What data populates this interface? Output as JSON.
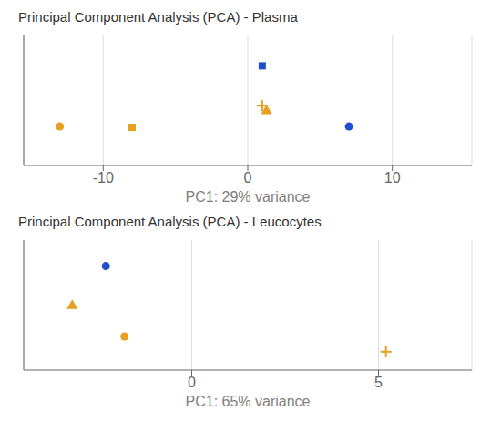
{
  "chart_data": [
    {
      "type": "scatter",
      "title": "Principal Component Analysis (PCA) - Plasma",
      "x_label": "PC1: 29% variance",
      "xlim": [
        -15.5,
        15.5
      ],
      "xticks": [
        -10,
        0,
        10
      ],
      "ylim": [
        -4,
        11
      ],
      "grid": true,
      "tick_labels": "x",
      "series": [
        {
          "color": "#1F4FCC",
          "marker": "square",
          "x": [
            1.0
          ],
          "values": [
            7.5
          ]
        },
        {
          "color": "#E8A020",
          "marker": "circle",
          "x": [
            -13.0
          ],
          "values": [
            0.5
          ]
        },
        {
          "color": "#E8A020",
          "marker": "square",
          "x": [
            -8.0
          ],
          "values": [
            0.4
          ]
        },
        {
          "color": "#E8A020",
          "marker": "triangle",
          "x": [
            1.3
          ],
          "values": [
            2.3
          ]
        },
        {
          "color": "#E8A020",
          "marker": "plus",
          "x": [
            1.0
          ],
          "values": [
            2.9
          ]
        },
        {
          "color": "#1F4FCC",
          "marker": "circle",
          "x": [
            7.0
          ],
          "values": [
            0.5
          ]
        }
      ]
    },
    {
      "type": "scatter",
      "title": "Principal Component Analysis (PCA) - Leucocytes",
      "x_label": "PC1: 65% variance",
      "xlim": [
        -4.5,
        7.5
      ],
      "xticks": [
        0,
        5
      ],
      "ylim": [
        -3,
        5.5
      ],
      "grid": true,
      "tick_labels": "x",
      "series": [
        {
          "color": "#1F4FCC",
          "marker": "circle",
          "x": [
            -2.3
          ],
          "values": [
            3.8
          ]
        },
        {
          "color": "#E8A020",
          "marker": "triangle",
          "x": [
            -3.2
          ],
          "values": [
            1.2
          ]
        },
        {
          "color": "#E8A020",
          "marker": "circle",
          "x": [
            -1.8
          ],
          "values": [
            -0.8
          ]
        },
        {
          "color": "#E8A020",
          "marker": "plus",
          "x": [
            5.2
          ],
          "values": [
            -1.8
          ]
        }
      ]
    }
  ]
}
